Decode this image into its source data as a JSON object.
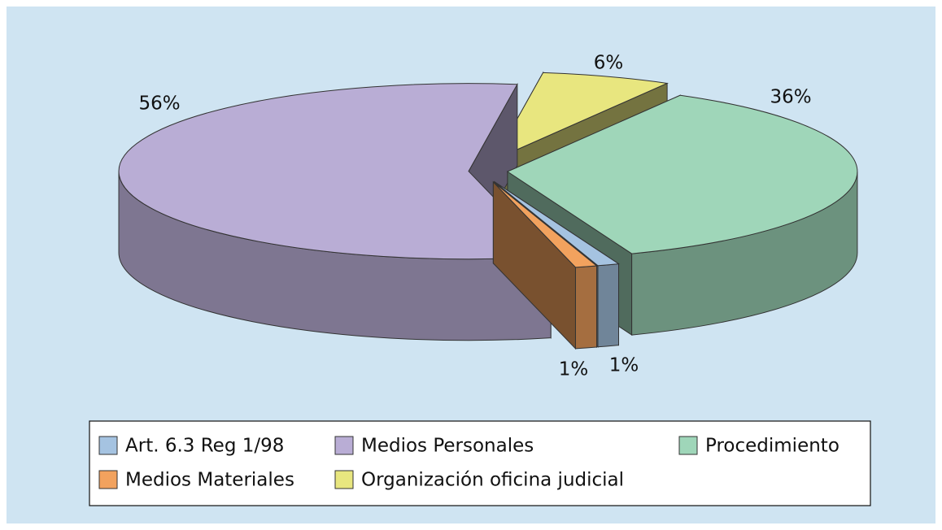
{
  "chart_data": {
    "type": "pie",
    "categories": [
      "Art. 6.3 Reg 1/98",
      "Medios Personales",
      "Procedimiento",
      "Medios Materiales",
      "Organización oficina judicial"
    ],
    "values": [
      1,
      56,
      36,
      1,
      6
    ],
    "value_labels": [
      "1%",
      "56%",
      "36%",
      "1%",
      "6%"
    ],
    "colors": [
      "#a5c3e1",
      "#b9add5",
      "#9fd6b9",
      "#f2a25e",
      "#e8e67f"
    ]
  }
}
